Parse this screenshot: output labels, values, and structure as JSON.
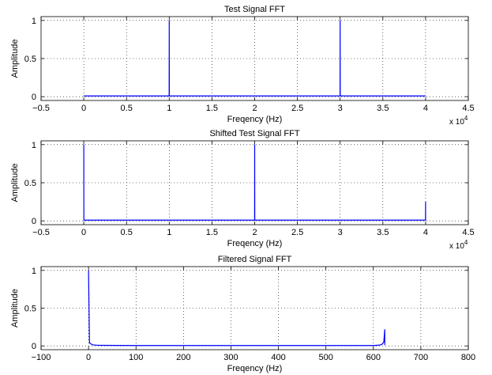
{
  "chart_data": [
    {
      "type": "line",
      "title": "Test Signal FFT",
      "xlabel": "Freqency (Hz)",
      "ylabel": "Amplitude",
      "xlim": [
        -5000,
        45000
      ],
      "ylim": [
        -0.05,
        1.05
      ],
      "xticks": [
        -5000,
        0,
        5000,
        10000,
        15000,
        20000,
        25000,
        30000,
        35000,
        40000,
        45000
      ],
      "xtick_labels": [
        "−0.5",
        "0",
        "0.5",
        "1",
        "1.5",
        "2",
        "2.5",
        "3",
        "3.5",
        "4",
        "4.5"
      ],
      "x_multiplier": {
        "base": "x 10",
        "exp": "4"
      },
      "yticks": [
        0,
        0.5,
        1
      ],
      "ytick_labels": [
        "0",
        "0.5",
        "1"
      ],
      "grid": true,
      "series": [
        {
          "color": "#0000ff",
          "points": [
            [
              0,
              0.01
            ],
            [
              9990,
              0.01
            ],
            [
              10000,
              1.0
            ],
            [
              10010,
              0.01
            ],
            [
              29990,
              0.01
            ],
            [
              30000,
              1.0
            ],
            [
              30010,
              0.01
            ],
            [
              40000,
              0.01
            ]
          ]
        }
      ]
    },
    {
      "type": "line",
      "title": "Shifted Test Signal FFT",
      "xlabel": "Freqency (Hz)",
      "ylabel": "Amplitude",
      "xlim": [
        -5000,
        45000
      ],
      "ylim": [
        -0.05,
        1.05
      ],
      "xticks": [
        -5000,
        0,
        5000,
        10000,
        15000,
        20000,
        25000,
        30000,
        35000,
        40000,
        45000
      ],
      "xtick_labels": [
        "−0.5",
        "0",
        "0.5",
        "1",
        "1.5",
        "2",
        "2.5",
        "3",
        "3.5",
        "4",
        "4.5"
      ],
      "x_multiplier": {
        "base": "x 10",
        "exp": "4"
      },
      "yticks": [
        0,
        0.5,
        1
      ],
      "ytick_labels": [
        "0",
        "0.5",
        "1"
      ],
      "grid": true,
      "series": [
        {
          "color": "#0000ff",
          "points": [
            [
              0,
              1.0
            ],
            [
              10,
              0.01
            ],
            [
              19990,
              0.01
            ],
            [
              20000,
              1.0
            ],
            [
              20010,
              0.01
            ],
            [
              39990,
              0.01
            ],
            [
              40000,
              0.25
            ],
            [
              40000,
              0.01
            ]
          ]
        }
      ]
    },
    {
      "type": "line",
      "title": "Filtered Signal FFT",
      "xlabel": "Freqency (Hz)",
      "ylabel": "Amplitude",
      "xlim": [
        -100,
        800
      ],
      "ylim": [
        -0.05,
        1.05
      ],
      "xticks": [
        -100,
        0,
        100,
        200,
        300,
        400,
        500,
        600,
        700,
        800
      ],
      "xtick_labels": [
        "−100",
        "0",
        "100",
        "200",
        "300",
        "400",
        "500",
        "600",
        "700",
        "800"
      ],
      "yticks": [
        0,
        0.5,
        1
      ],
      "ytick_labels": [
        "0",
        "0.5",
        "1"
      ],
      "grid": true,
      "series": [
        {
          "color": "#0000ff",
          "points": [
            [
              0,
              1.0
            ],
            [
              2,
              0.04
            ],
            [
              8,
              0.015
            ],
            [
              20,
              0.008
            ],
            [
              100,
              0.005
            ],
            [
              600,
              0.005
            ],
            [
              612,
              0.01
            ],
            [
              618,
              0.02
            ],
            [
              622,
              0.05
            ],
            [
              624,
              0.22
            ],
            [
              624,
              0.01
            ]
          ]
        }
      ]
    }
  ]
}
